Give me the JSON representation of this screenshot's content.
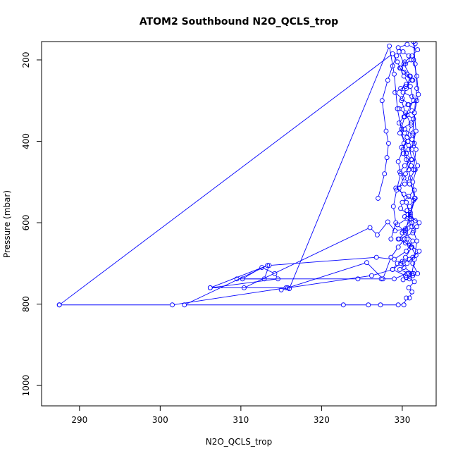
{
  "chart_data": {
    "type": "line",
    "title": "ATOM2 Southbound N2O_QCLS_trop",
    "xlabel": "N2O_QCLS_trop",
    "ylabel": "Pressure (mbar)",
    "xlim": [
      285.3,
      334.2
    ],
    "ylim": [
      1050,
      155
    ],
    "y_reversed": true,
    "x_ticks": [
      290,
      300,
      310,
      320,
      330
    ],
    "y_ticks": [
      200,
      400,
      600,
      800,
      1000
    ],
    "grid": false,
    "legend": "none",
    "marker": "open-circle",
    "line_color": "#0000ff",
    "series": [
      {
        "x": [
          287.5,
          301.5,
          315.6,
          306.2,
          313.3,
          303.0,
          322.7,
          325.8,
          327.3,
          329.5,
          330.2,
          330.5,
          330.9,
          331.2,
          330.8,
          331.5,
          330.4,
          328.8,
          329.4,
          330.9,
          331.7,
          331.1,
          330.4,
          329.6,
          331.3,
          331.8,
          332.1,
          331.0,
          330.6,
          330.9,
          331.4,
          330.2,
          329.2,
          330.3,
          331.0,
          331.6,
          331.1,
          330.5,
          330.1,
          330.8,
          331.5,
          331.2,
          330.3,
          329.9,
          331.1,
          331.4,
          330.6,
          329.6,
          330.7,
          331.8,
          331.2,
          330.1,
          329.8,
          330.5,
          331.3,
          330.9,
          330.2,
          329.7,
          330.4,
          331.1,
          330.8,
          330.1,
          329.5,
          330.6,
          331.9,
          331.2,
          330.3,
          329.8,
          330.6,
          331.2,
          330.4,
          329.1,
          330.0,
          330.8,
          331.2,
          330.2,
          329.6,
          330.3,
          331.3,
          330.7,
          329.9,
          330.5,
          331.1,
          330.3,
          329.7,
          330.2,
          330.9,
          331.5,
          330.8,
          330.0,
          329.8,
          330.7,
          331.6,
          331.2,
          330.4,
          329.5,
          330.9,
          332.1,
          331.3,
          330.6,
          329.7,
          330.8,
          331.3,
          330.5,
          330.1,
          330.9,
          331.4,
          330.2,
          330.0
        ],
        "y": [
          802,
          802,
          760,
          760,
          705,
          802,
          802,
          802,
          802,
          802,
          802,
          785,
          785,
          770,
          760,
          745,
          730,
          715,
          700,
          690,
          680,
          660,
          650,
          640,
          625,
          610,
          600,
          585,
          570,
          560,
          545,
          530,
          515,
          505,
          490,
          470,
          460,
          445,
          430,
          420,
          405,
          395,
          380,
          370,
          355,
          345,
          335,
          320,
          310,
          300,
          290,
          280,
          270,
          260,
          250,
          240,
          230,
          220,
          210,
          200,
          190,
          180,
          170,
          162,
          175,
          190,
          205,
          220,
          235,
          250,
          265,
          280,
          295,
          310,
          325,
          340,
          355,
          370,
          385,
          400,
          415,
          430,
          445,
          460,
          475,
          490,
          505,
          520,
          535,
          550,
          565,
          580,
          595,
          610,
          625,
          640,
          655,
          670,
          685,
          700,
          715,
          725,
          730,
          735,
          740,
          738,
          725,
          710,
          695
        ]
      },
      {
        "x": [
          287.5,
          328.8,
          329.4,
          330.2,
          331.0,
          331.4,
          330.3,
          329.7,
          330.8,
          331.2,
          330.4,
          329.6,
          330.5,
          331.1,
          330.0
        ],
        "y": [
          802,
          185,
          205,
          240,
          265,
          300,
          340,
          380,
          410,
          445,
          480,
          515,
          550,
          590,
          625
        ]
      },
      {
        "x": [
          306.2,
          314.6,
          314.2,
          312.6,
          310.2,
          312.9,
          313.5,
          326.8,
          329.0,
          330.5,
          331.3,
          330.2,
          329.4,
          330.6,
          331.0
        ],
        "y": [
          760,
          738,
          725,
          710,
          738,
          738,
          705,
          685,
          690,
          670,
          645,
          620,
          605,
          590,
          575
        ]
      },
      {
        "x": [
          310.4,
          326.0,
          326.9,
          328.2,
          329.1,
          330.4,
          331.2,
          330.3
        ],
        "y": [
          760,
          612,
          630,
          598,
          620,
          615,
          600,
          585
        ]
      },
      {
        "x": [
          309.5,
          324.5,
          327.4,
          329.0,
          330.6,
          331.4,
          331.9,
          331.3
        ],
        "y": [
          738,
          738,
          738,
          738,
          725,
          725,
          725,
          700
        ]
      },
      {
        "x": [
          315.0,
          325.6,
          327.6,
          328.6,
          329.5,
          330.3
        ],
        "y": [
          765,
          698,
          738,
          685,
          660,
          640
        ]
      },
      {
        "x": [
          315.8,
          326.2,
          328.8,
          329.8,
          330.4,
          331.2,
          330.6
        ],
        "y": [
          760,
          730,
          715,
          700,
          685,
          660,
          640
        ]
      },
      {
        "x": [
          316.0,
          328.4,
          329.0,
          329.4,
          330.2,
          330.8,
          331.5,
          330.4
        ],
        "y": [
          762,
          166,
          235,
          320,
          405,
          470,
          540,
          620
        ]
      },
      {
        "x": [
          327.0,
          327.8,
          328.1,
          328.3,
          328.0,
          327.5,
          328.2,
          328.8,
          329.3
        ],
        "y": [
          540,
          480,
          440,
          405,
          375,
          300,
          250,
          215,
          190
        ]
      },
      {
        "x": [
          328.6,
          329.2,
          328.9,
          329.3,
          329.8,
          329.5,
          330.1,
          330.6,
          331.1,
          330.4,
          329.9,
          330.5,
          331.0,
          330.2,
          329.6
        ],
        "y": [
          640,
          600,
          560,
          520,
          480,
          450,
          420,
          390,
          360,
          330,
          300,
          270,
          240,
          210,
          180
        ]
      },
      {
        "x": [
          331.6,
          331.4,
          331.8,
          332.0,
          331.5,
          331.7,
          331.2,
          331.9,
          331.3,
          331.6,
          331.0,
          331.4,
          331.8,
          331.5,
          331.2
        ],
        "y": [
          160,
          200,
          240,
          285,
          330,
          375,
          420,
          460,
          500,
          540,
          580,
          620,
          645,
          690,
          725
        ]
      },
      {
        "x": [
          331.4,
          331.6,
          331.8,
          331.5,
          331.3,
          331.7,
          331.4
        ],
        "y": [
          155,
          210,
          270,
          330,
          380,
          420,
          470
        ]
      }
    ]
  }
}
